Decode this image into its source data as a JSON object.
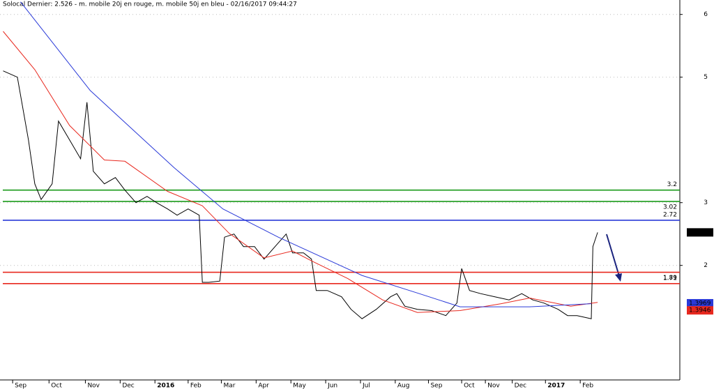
{
  "chart_data": {
    "type": "line",
    "title": "Solocal Dernier: 2.526 - m. mobile 20j en rouge, m. mobile 50j en bleu - 02/16/2017 09:44:27",
    "xlim": [
      0,
      430
    ],
    "ylim": [
      0.23,
      6.23
    ],
    "yticks": [
      6,
      5,
      3,
      2
    ],
    "xticks": [
      {
        "value": 8,
        "label": "Sep"
      },
      {
        "value": 31,
        "label": "Oct"
      },
      {
        "value": 54,
        "label": "Nov"
      },
      {
        "value": 76,
        "label": "Dec"
      },
      {
        "value": 98,
        "label": "2016"
      },
      {
        "value": 119,
        "label": "Feb"
      },
      {
        "value": 140,
        "label": "Mar"
      },
      {
        "value": 162,
        "label": "Apr"
      },
      {
        "value": 184,
        "label": "May"
      },
      {
        "value": 206,
        "label": "Jun"
      },
      {
        "value": 228,
        "label": "Jul"
      },
      {
        "value": 250,
        "label": "Aug"
      },
      {
        "value": 271,
        "label": "Sep"
      },
      {
        "value": 292,
        "label": "Oct"
      },
      {
        "value": 307,
        "label": "Nov"
      },
      {
        "value": 324,
        "label": "Dec"
      },
      {
        "value": 345,
        "label": "2017"
      },
      {
        "value": 367,
        "label": "Feb"
      }
    ],
    "series": [
      {
        "name": "Dernier",
        "color": "#000000",
        "x": [
          2,
          11,
          18,
          22,
          26,
          33,
          37,
          44,
          51,
          55,
          59,
          66,
          73,
          79,
          86,
          93,
          99,
          106,
          112,
          119,
          126,
          128,
          132,
          139,
          142,
          148,
          154,
          161,
          167,
          174,
          181,
          185,
          192,
          197,
          200,
          207,
          216,
          222,
          229,
          238,
          247,
          251,
          256,
          264,
          273,
          282,
          289,
          292,
          297,
          304,
          313,
          322,
          330,
          337,
          344,
          353,
          359,
          365,
          374,
          375,
          378
        ],
        "values": [
          5.1,
          5.0,
          4.0,
          3.3,
          3.05,
          3.3,
          4.3,
          4.0,
          3.7,
          4.6,
          3.5,
          3.3,
          3.4,
          3.2,
          3.0,
          3.1,
          3.0,
          2.9,
          2.8,
          2.9,
          2.8,
          1.73,
          1.73,
          1.75,
          2.45,
          2.5,
          2.3,
          2.3,
          2.1,
          2.3,
          2.5,
          2.2,
          2.2,
          2.1,
          1.6,
          1.6,
          1.5,
          1.3,
          1.15,
          1.3,
          1.5,
          1.55,
          1.35,
          1.3,
          1.28,
          1.2,
          1.4,
          1.95,
          1.6,
          1.55,
          1.5,
          1.45,
          1.55,
          1.45,
          1.4,
          1.3,
          1.2,
          1.2,
          1.15,
          2.3,
          2.526
        ]
      },
      {
        "name": "m. mobile 20j",
        "color": "#e8281e",
        "x": [
          2,
          22,
          44,
          66,
          79,
          106,
          128,
          145,
          167,
          185,
          198,
          220,
          242,
          264,
          291,
          317,
          335,
          361,
          378
        ],
        "values": [
          5.73,
          5.12,
          4.23,
          3.68,
          3.66,
          3.18,
          2.95,
          2.51,
          2.12,
          2.23,
          2.06,
          1.79,
          1.45,
          1.25,
          1.28,
          1.39,
          1.48,
          1.35,
          1.41
        ]
      },
      {
        "name": "m. mobile 50j",
        "color": "#2a3ad8",
        "x": [
          13,
          57,
          110,
          141,
          176,
          229,
          264,
          291,
          335,
          374
        ],
        "values": [
          6.2,
          4.79,
          3.56,
          2.9,
          2.45,
          1.84,
          1.56,
          1.34,
          1.34,
          1.39
        ]
      }
    ],
    "levels": [
      {
        "value": 3.2,
        "color": "#1a9a1a"
      },
      {
        "value": 3.02,
        "color": "#1a9a1a"
      },
      {
        "value": 2.72,
        "color": "#2a3ad8"
      },
      {
        "value": 1.89,
        "color": "#e8281e"
      },
      {
        "value": 1.71,
        "color": "#e8281e"
      }
    ],
    "last_values": [
      {
        "value": 2.526,
        "color": "#000000"
      },
      {
        "value": 1.3969,
        "color": "#2a3ad8"
      },
      {
        "value": 1.3946,
        "color": "#e8281e"
      }
    ]
  }
}
